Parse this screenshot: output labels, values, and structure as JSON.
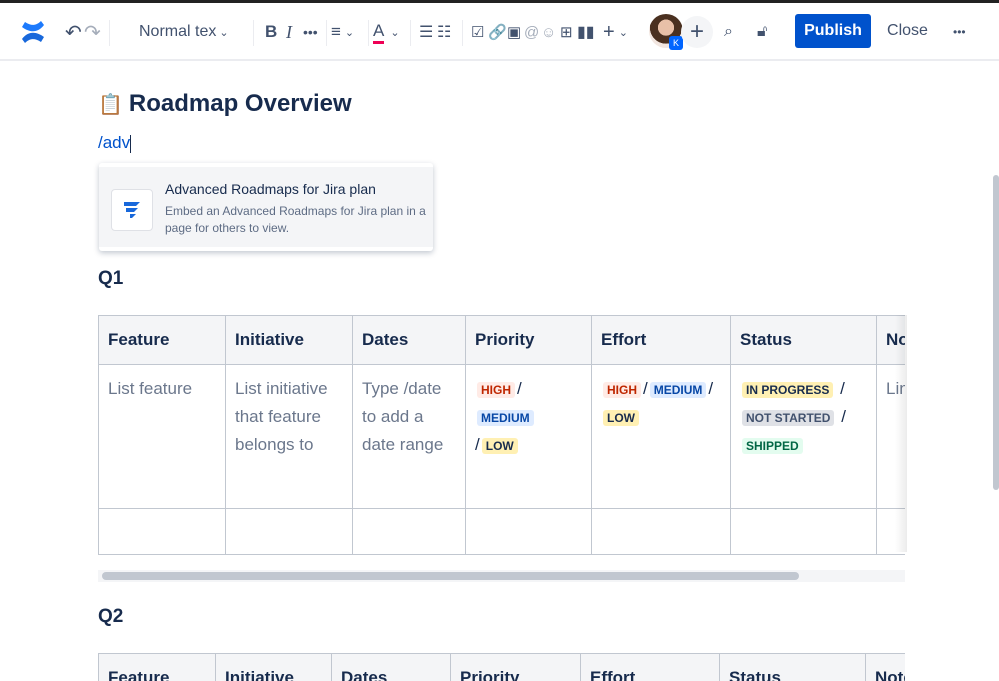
{
  "toolbar": {
    "text_style": "Normal tex",
    "avatar_badge": "K",
    "publish": "Publish",
    "close": "Close",
    "more": "•••",
    "colors": {
      "primary": "#0052cc"
    }
  },
  "page": {
    "title_emoji": "📋",
    "title": "Roadmap Overview",
    "command": "/adv"
  },
  "popup": {
    "title": "Advanced Roadmaps for Jira plan",
    "description": "Embed an Advanced Roadmaps for Jira plan in a page for others to view."
  },
  "sections": [
    {
      "heading": "Q1",
      "headers": [
        "Feature",
        "Initiative",
        "Dates",
        "Priority",
        "Effort",
        "Status",
        "Notes"
      ],
      "row": {
        "feature": "List feature",
        "initiative": "List initiative that feature belongs to",
        "dates": "Type /date to add a date range",
        "notes": "Link pages"
      }
    },
    {
      "heading": "Q2",
      "headers": [
        "Feature",
        "Initiative",
        "Dates",
        "Priority",
        "Effort",
        "Status",
        "Notes"
      ]
    }
  ],
  "labels": {
    "high": "HIGH",
    "medium": "MEDIUM",
    "low": "LOW",
    "in_progress": "IN PROGRESS",
    "not_started": "NOT STARTED",
    "shipped": "SHIPPED",
    "slash": "/"
  }
}
